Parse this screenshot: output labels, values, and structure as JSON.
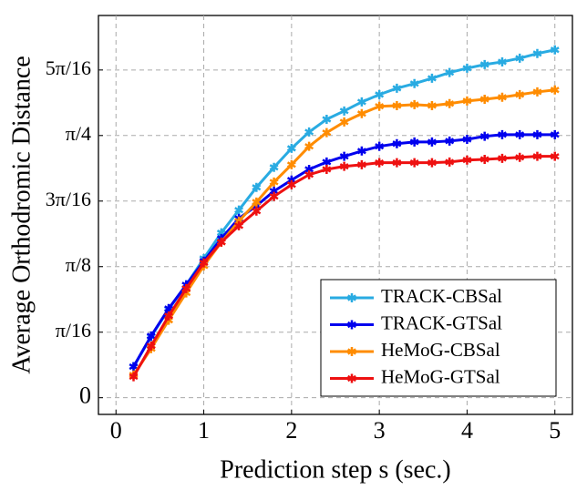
{
  "chart_data": {
    "type": "line",
    "xlabel": "Prediction step s (sec.)",
    "ylabel": "Average Orthodromic Distance",
    "x": [
      0.2,
      0.4,
      0.6,
      0.8,
      1.0,
      1.2,
      1.4,
      1.6,
      1.8,
      2.0,
      2.2,
      2.4,
      2.6,
      2.8,
      3.0,
      3.2,
      3.4,
      3.6,
      3.8,
      4.0,
      4.2,
      4.4,
      4.6,
      4.8,
      5.0
    ],
    "series": [
      {
        "name": "TRACK-CBSal",
        "color": "#29abe2",
        "values": [
          0.093,
          0.183,
          0.265,
          0.338,
          0.417,
          0.494,
          0.562,
          0.63,
          0.69,
          0.747,
          0.796,
          0.834,
          0.859,
          0.886,
          0.908,
          0.927,
          0.941,
          0.957,
          0.974,
          0.987,
          0.998,
          1.006,
          1.017,
          1.031,
          1.042
        ]
      },
      {
        "name": "TRACK-GTSal",
        "color": "#0000ee",
        "values": [
          0.093,
          0.185,
          0.267,
          0.338,
          0.409,
          0.477,
          0.537,
          0.575,
          0.619,
          0.652,
          0.684,
          0.706,
          0.723,
          0.739,
          0.753,
          0.761,
          0.766,
          0.766,
          0.769,
          0.774,
          0.783,
          0.788,
          0.788,
          0.788,
          0.788
        ]
      },
      {
        "name": "HeMoG-CBSal",
        "color": "#ff8c00",
        "values": [
          0.068,
          0.147,
          0.232,
          0.314,
          0.395,
          0.466,
          0.529,
          0.586,
          0.646,
          0.698,
          0.753,
          0.794,
          0.826,
          0.851,
          0.873,
          0.875,
          0.878,
          0.875,
          0.881,
          0.889,
          0.894,
          0.9,
          0.908,
          0.916,
          0.922
        ]
      },
      {
        "name": "HeMoG-GTSal",
        "color": "#ee1111",
        "values": [
          0.063,
          0.155,
          0.245,
          0.327,
          0.404,
          0.466,
          0.515,
          0.559,
          0.603,
          0.638,
          0.668,
          0.684,
          0.693,
          0.698,
          0.704,
          0.704,
          0.704,
          0.704,
          0.706,
          0.712,
          0.714,
          0.717,
          0.72,
          0.723,
          0.723
        ]
      }
    ],
    "xlim": [
      -0.2,
      5.2
    ],
    "xticks": [
      0,
      1,
      2,
      3,
      4,
      5
    ],
    "ylim": [
      -0.05,
      1.145
    ],
    "yticks": [
      {
        "value": 0,
        "label": "0"
      },
      {
        "value": 0.19635,
        "label": "π/16"
      },
      {
        "value": 0.3927,
        "label": "π/8"
      },
      {
        "value": 0.58905,
        "label": "3π/16"
      },
      {
        "value": 0.7854,
        "label": "π/4"
      },
      {
        "value": 0.98175,
        "label": "5π/16"
      }
    ],
    "grid": true,
    "legend": "lower right"
  }
}
